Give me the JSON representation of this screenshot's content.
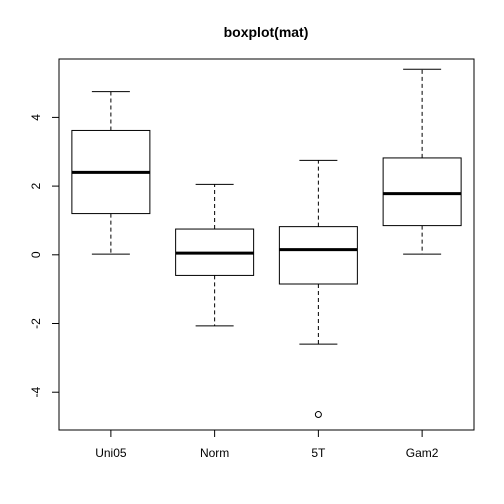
{
  "chart_data": {
    "type": "boxplot",
    "title": "boxplot(mat)",
    "xlabel": "",
    "ylabel": "",
    "ylim": [
      -5.1,
      5.7
    ],
    "yticks": [
      -4,
      -2,
      0,
      2,
      4
    ],
    "ytick_labels": [
      "-4",
      "-2",
      "0",
      "2",
      "4"
    ],
    "grid": false,
    "categories": [
      "Uni05",
      "Norm",
      "5T",
      "Gam2"
    ],
    "boxes": [
      {
        "name": "Uni05",
        "whisker_low": 0.02,
        "q1": 1.2,
        "median": 2.4,
        "q3": 3.62,
        "whisker_high": 4.75,
        "outliers": []
      },
      {
        "name": "Norm",
        "whisker_low": -2.07,
        "q1": -0.6,
        "median": 0.05,
        "q3": 0.75,
        "whisker_high": 2.05,
        "outliers": []
      },
      {
        "name": "5T",
        "whisker_low": -2.6,
        "q1": -0.85,
        "median": 0.15,
        "q3": 0.82,
        "whisker_high": 2.75,
        "outliers": [
          -4.65
        ]
      },
      {
        "name": "Gam2",
        "whisker_low": 0.02,
        "q1": 0.85,
        "median": 1.78,
        "q3": 2.82,
        "whisker_high": 5.4,
        "outliers": []
      }
    ]
  }
}
